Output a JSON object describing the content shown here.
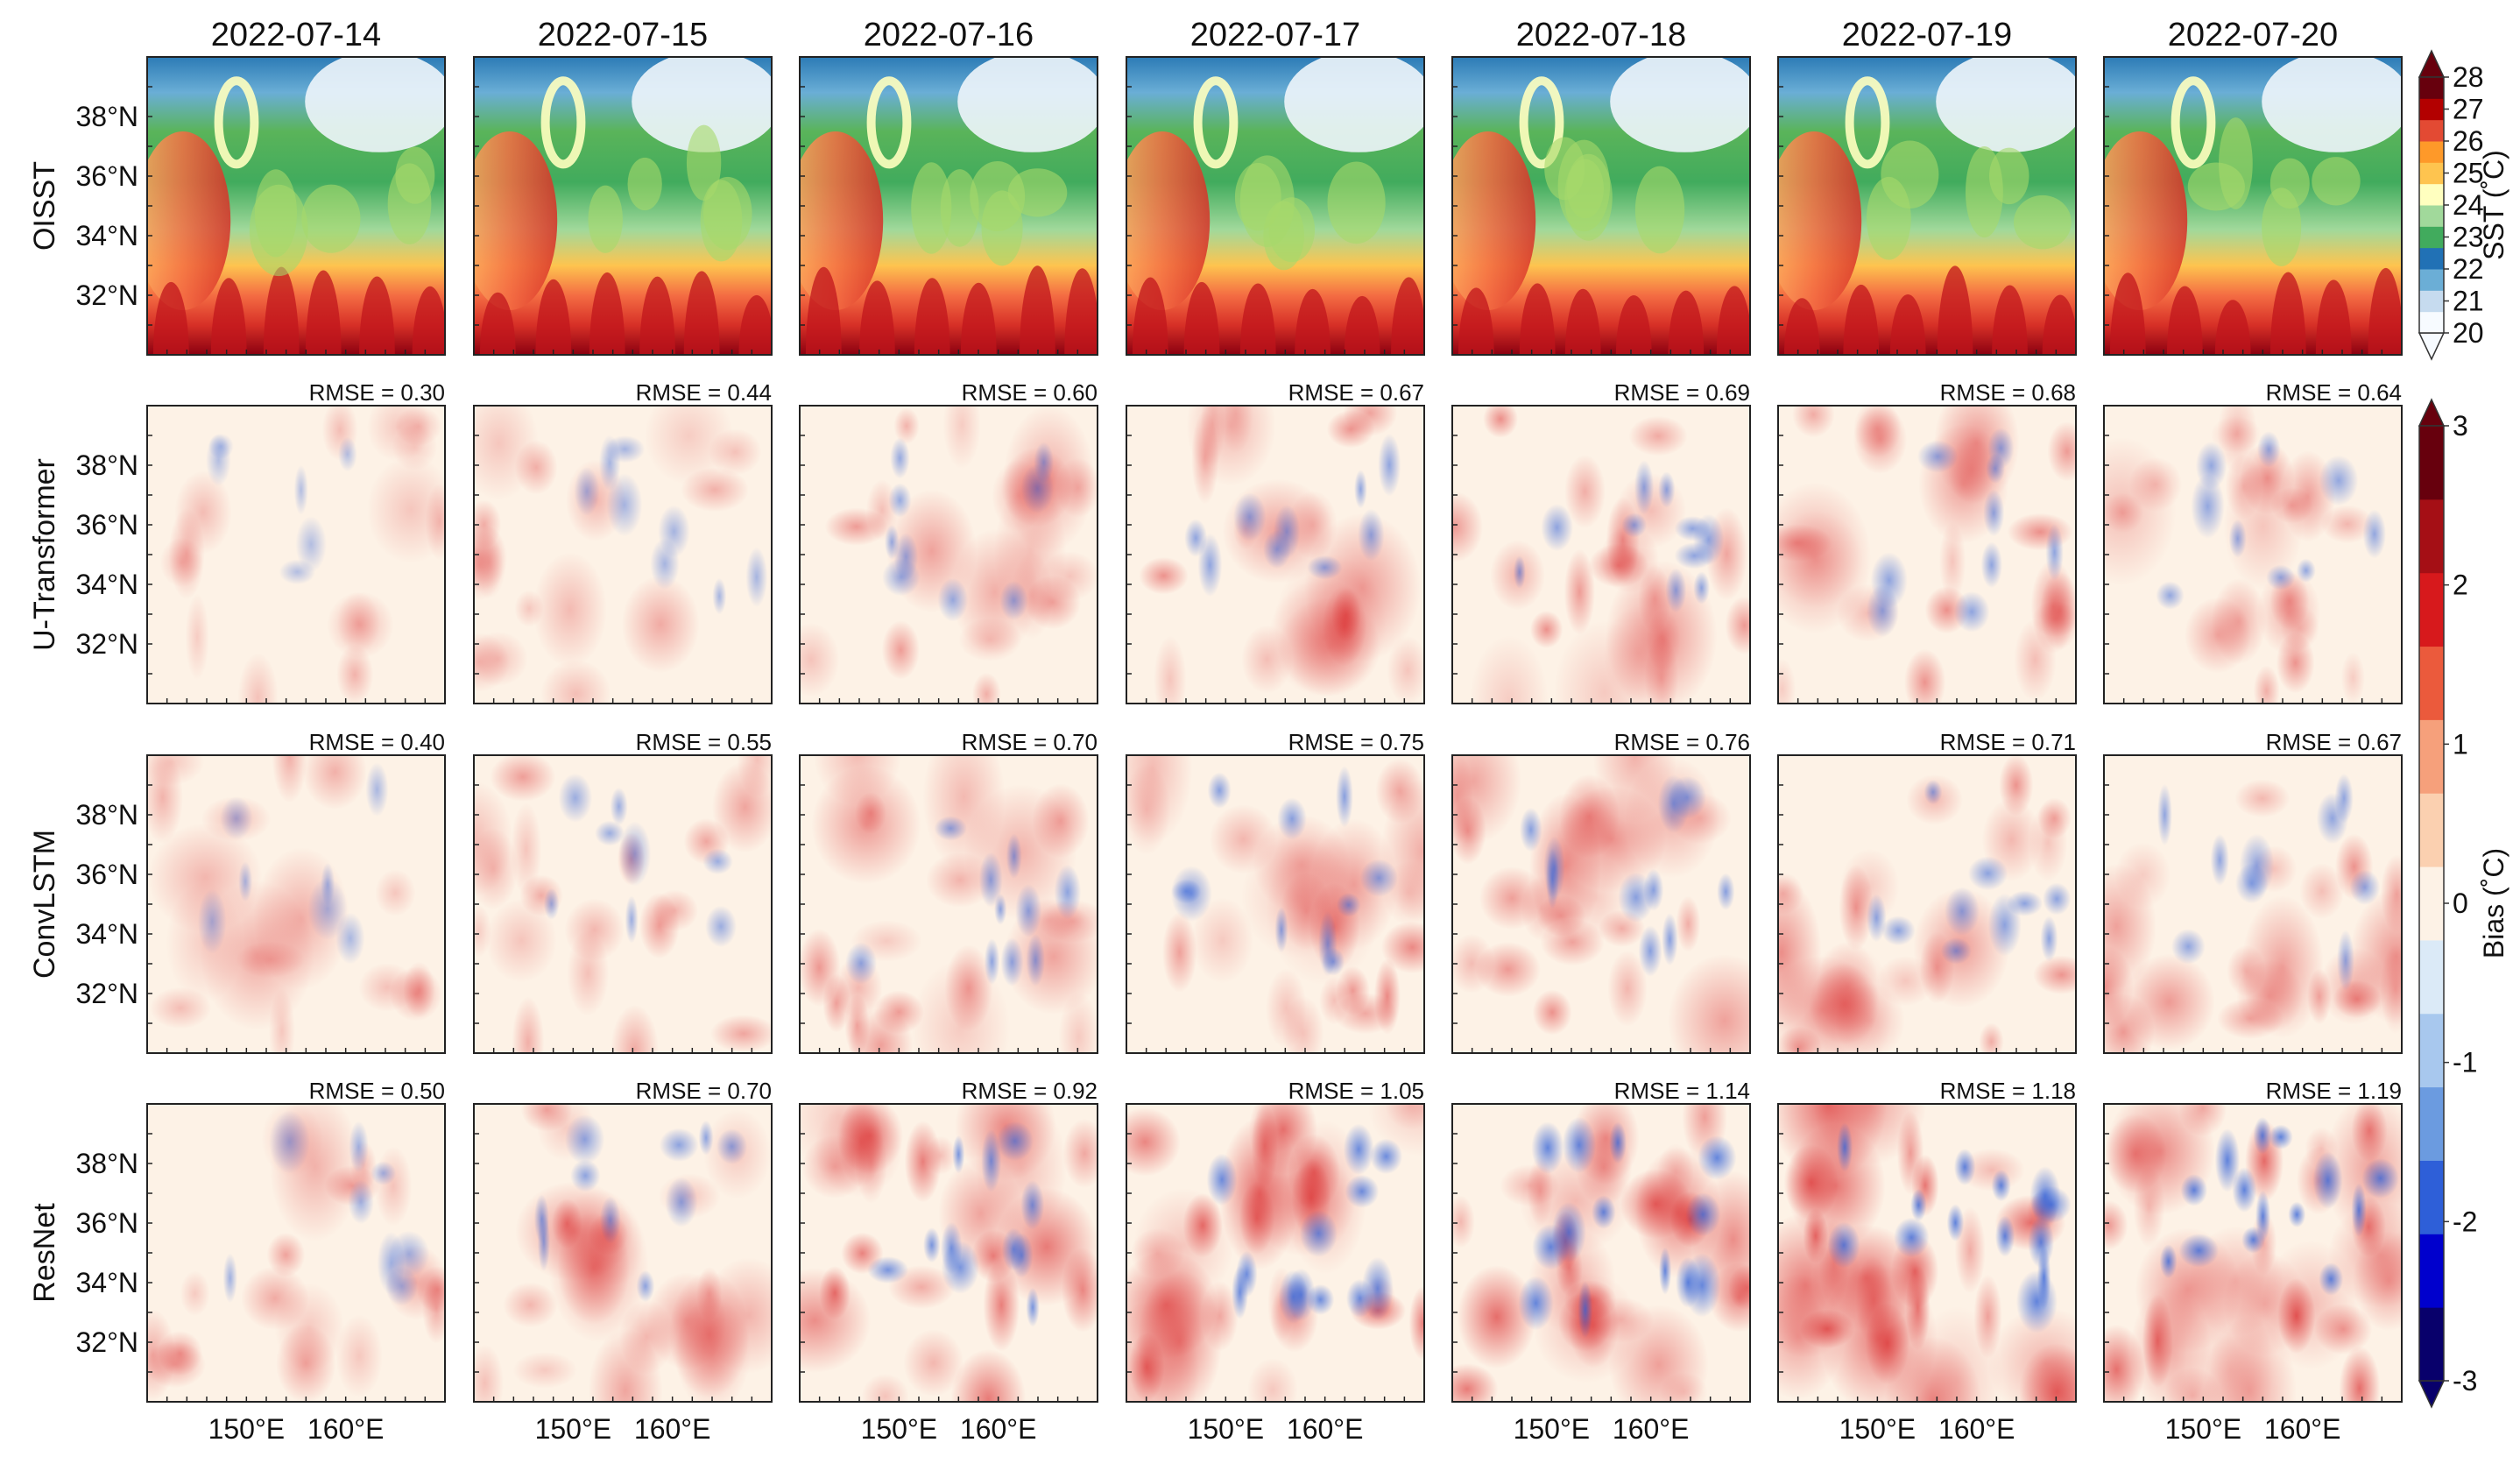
{
  "chart_data": {
    "type": "heatmap",
    "title": "",
    "dates": [
      "2022-07-14",
      "2022-07-15",
      "2022-07-16",
      "2022-07-17",
      "2022-07-18",
      "2022-07-19",
      "2022-07-20"
    ],
    "rows": [
      {
        "key": "oisst",
        "label": "OISST",
        "kind": "sst"
      },
      {
        "key": "u_transformer",
        "label": "U-Transformer",
        "kind": "bias"
      },
      {
        "key": "convlstm",
        "label": "ConvLSTM",
        "kind": "bias"
      },
      {
        "key": "resnet",
        "label": "ResNet",
        "kind": "bias"
      }
    ],
    "rmse_prefix": "RMSE = ",
    "rmse": {
      "u_transformer": [
        "0.30",
        "0.44",
        "0.60",
        "0.67",
        "0.69",
        "0.68",
        "0.64"
      ],
      "convlstm": [
        "0.40",
        "0.55",
        "0.70",
        "0.75",
        "0.76",
        "0.71",
        "0.67"
      ],
      "resnet": [
        "0.50",
        "0.70",
        "0.92",
        "1.05",
        "1.14",
        "1.18",
        "1.19"
      ]
    },
    "bias_intensity": {
      "u_transformer": [
        0.3,
        0.44,
        0.6,
        0.67,
        0.69,
        0.68,
        0.64
      ],
      "convlstm": [
        0.4,
        0.55,
        0.7,
        0.75,
        0.76,
        0.71,
        0.67
      ],
      "resnet": [
        0.5,
        0.7,
        0.92,
        1.05,
        1.14,
        1.18,
        1.19
      ]
    },
    "y_ticks": [
      "32°N",
      "34°N",
      "36°N",
      "38°N"
    ],
    "y_tick_values": [
      32,
      34,
      36,
      38
    ],
    "x_ticks": [
      "150°E",
      "160°E"
    ],
    "x_tick_values": [
      150,
      160
    ],
    "xlim": [
      140,
      170
    ],
    "ylim": [
      30,
      40
    ],
    "sst_colorbar": {
      "title": "SST (˚C)",
      "ticks": [
        "20",
        "21",
        "22",
        "23",
        "24",
        "25",
        "26",
        "27",
        "28"
      ],
      "range": [
        20,
        28
      ],
      "colors": [
        "#f7fbff",
        "#c6dbef",
        "#6baed6",
        "#2171b5",
        "#41ab5d",
        "#a1d99b",
        "#ffffbf",
        "#fec44f",
        "#fe9929",
        "#e34a33",
        "#b30000",
        "#67000d"
      ]
    },
    "bias_colorbar": {
      "title": "Bias (˚C)",
      "ticks": [
        "-3",
        "-2",
        "-1",
        "0",
        "1",
        "2",
        "3"
      ],
      "range": [
        -3,
        3
      ],
      "colors": [
        "#08006b",
        "#0000cd",
        "#2e5fd8",
        "#6b9be0",
        "#a8c8ee",
        "#dbeaf7",
        "#fdf2e6",
        "#fbd0b0",
        "#f6a07b",
        "#eb5a3c",
        "#d7191c",
        "#a50f15",
        "#67000d"
      ]
    }
  }
}
